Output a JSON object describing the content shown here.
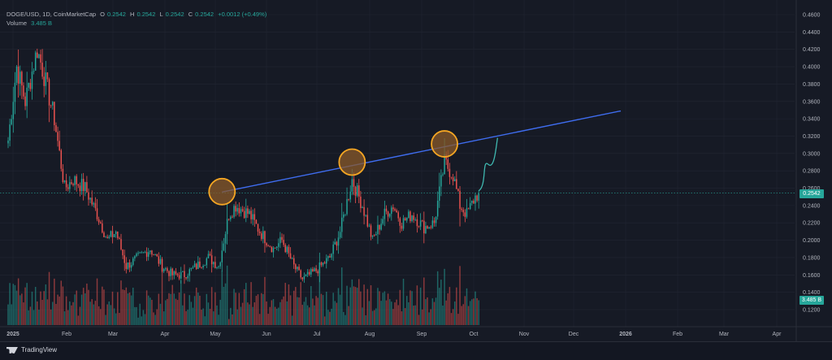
{
  "header": {
    "symbol": "DOGE/USD, 1D, CoinMarketCap",
    "o_label": "O",
    "o_value": "0.2542",
    "h_label": "H",
    "h_value": "0.2542",
    "l_label": "L",
    "l_value": "0.2542",
    "c_label": "C",
    "c_value": "0.2542",
    "change": "+0.0012 (+0.49%)",
    "volume_label": "Volume",
    "volume_value": "3.485 B"
  },
  "price_badge": "0.2542",
  "volume_badge": "3.485 B",
  "footer": {
    "logo_text": "TradingView"
  },
  "colors": {
    "background": "#161a25",
    "up": "#26a69a",
    "down": "#ef5350",
    "trendline": "#3f6df0",
    "circle_fill": "#8a5a2a",
    "circle_stroke": "#f5a623",
    "projection": "#3fb8b0",
    "grid": "#222633"
  },
  "chart_data": {
    "type": "candlestick",
    "y_ticks": [
      "0.4600",
      "0.4400",
      "0.4200",
      "0.4000",
      "0.3800",
      "0.3600",
      "0.3400",
      "0.3200",
      "0.3000",
      "0.2800",
      "0.2600",
      "0.2400",
      "0.2200",
      "0.2000",
      "0.1800",
      "0.1600",
      "0.1400",
      "0.1200"
    ],
    "ylim": [
      0.11,
      0.46
    ],
    "x_ticks": [
      "2025",
      "Feb",
      "Mar",
      "Apr",
      "May",
      "Jun",
      "Jul",
      "Aug",
      "Sep",
      "Oct",
      "Nov",
      "Dec",
      "2026",
      "Feb",
      "Mar",
      "Apr"
    ],
    "last_close": 0.2542,
    "resistance_trendline": {
      "start": [
        "May 6",
        0.2555
      ],
      "end": [
        "Dec 25",
        0.349
      ]
    },
    "highlighted_peaks": [
      {
        "date": "May 6",
        "price": 0.256
      },
      {
        "date": "Jul 21",
        "price": 0.29
      },
      {
        "date": "Sep 13",
        "price": 0.311
      }
    ],
    "projection_path": {
      "start": [
        "Oct 3",
        0.257
      ],
      "end": [
        "Oct 14",
        0.318
      ]
    },
    "anchors": [
      [
        "2025-01-01",
        0.315
      ],
      [
        "2025-01-06",
        0.4
      ],
      [
        "2025-01-11",
        0.36
      ],
      [
        "2025-01-18",
        0.42
      ],
      [
        "2025-01-22",
        0.39
      ],
      [
        "2025-01-28",
        0.34
      ],
      [
        "2025-02-03",
        0.26
      ],
      [
        "2025-02-08",
        0.27
      ],
      [
        "2025-02-15",
        0.26
      ],
      [
        "2025-02-22",
        0.23
      ],
      [
        "2025-02-28",
        0.2
      ],
      [
        "2025-03-05",
        0.21
      ],
      [
        "2025-03-11",
        0.17
      ],
      [
        "2025-03-18",
        0.18
      ],
      [
        "2025-03-25",
        0.19
      ],
      [
        "2025-04-01",
        0.17
      ],
      [
        "2025-04-07",
        0.16
      ],
      [
        "2025-04-14",
        0.16
      ],
      [
        "2025-04-21",
        0.17
      ],
      [
        "2025-04-28",
        0.18
      ],
      [
        "2025-05-04",
        0.17
      ],
      [
        "2025-05-10",
        0.23
      ],
      [
        "2025-05-14",
        0.24
      ],
      [
        "2025-05-22",
        0.23
      ],
      [
        "2025-05-28",
        0.21
      ],
      [
        "2025-06-05",
        0.19
      ],
      [
        "2025-06-10",
        0.2
      ],
      [
        "2025-06-17",
        0.17
      ],
      [
        "2025-06-22",
        0.155
      ],
      [
        "2025-06-30",
        0.165
      ],
      [
        "2025-07-08",
        0.18
      ],
      [
        "2025-07-14",
        0.21
      ],
      [
        "2025-07-21",
        0.27
      ],
      [
        "2025-07-27",
        0.24
      ],
      [
        "2025-08-02",
        0.2
      ],
      [
        "2025-08-09",
        0.23
      ],
      [
        "2025-08-14",
        0.24
      ],
      [
        "2025-08-19",
        0.22
      ],
      [
        "2025-08-25",
        0.23
      ],
      [
        "2025-09-01",
        0.215
      ],
      [
        "2025-09-07",
        0.22
      ],
      [
        "2025-09-13",
        0.29
      ],
      [
        "2025-09-18",
        0.275
      ],
      [
        "2025-09-22",
        0.24
      ],
      [
        "2025-09-26",
        0.23
      ],
      [
        "2025-10-01",
        0.25
      ],
      [
        "2025-10-03",
        0.2542
      ]
    ]
  }
}
